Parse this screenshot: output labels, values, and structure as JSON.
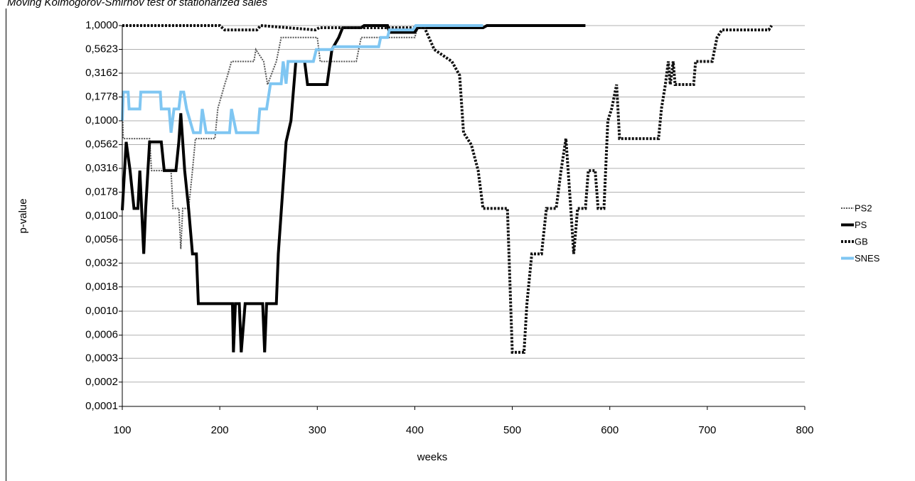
{
  "chart_data": {
    "type": "line",
    "title": "Moving Kolmogorov-Smirnov test of stationarized sales",
    "x_label": "weeks",
    "y_label": "p-value",
    "log_y": true,
    "grid": true,
    "legend": "right",
    "xlim": [
      100,
      800
    ],
    "xticks": [
      100,
      200,
      300,
      400,
      500,
      600,
      700,
      800
    ],
    "ylim": [
      0.0001,
      1
    ],
    "yticks": [
      {
        "value": 1,
        "label": "1,0000"
      },
      {
        "value": 0.5623,
        "label": "0,5623"
      },
      {
        "value": 0.3162,
        "label": "0,3162"
      },
      {
        "value": 0.1778,
        "label": "0,1778"
      },
      {
        "value": 0.1,
        "label": "0,1000"
      },
      {
        "value": 0.0562,
        "label": "0,0562"
      },
      {
        "value": 0.0316,
        "label": "0,0316"
      },
      {
        "value": 0.0178,
        "label": "0,0178"
      },
      {
        "value": 0.01,
        "label": "0,0100"
      },
      {
        "value": 0.0056,
        "label": "0,0056"
      },
      {
        "value": 0.0032,
        "label": "0,0032"
      },
      {
        "value": 0.0018,
        "label": "0,0018"
      },
      {
        "value": 0.001,
        "label": "0,0010"
      },
      {
        "value": 0.00056,
        "label": "0,0006"
      },
      {
        "value": 0.00032,
        "label": "0,0003"
      },
      {
        "value": 0.00018,
        "label": "0,0002"
      },
      {
        "value": 0.0001,
        "label": "0,0001"
      }
    ],
    "series": [
      {
        "name": "PS2",
        "color": "#555555",
        "dash": "dotted",
        "line_width": 2,
        "x": [
          100,
          101,
          103,
          128,
          130,
          150,
          152,
          158,
          160,
          162,
          168,
          172,
          175,
          195,
          198,
          205,
          208,
          212,
          235,
          237,
          245,
          249,
          258,
          263,
          300,
          303,
          340,
          345,
          400,
          403,
          410
        ],
        "values": [
          0.14,
          0.065,
          0.065,
          0.065,
          0.03,
          0.03,
          0.012,
          0.012,
          0.0045,
          0.012,
          0.012,
          0.03,
          0.065,
          0.065,
          0.135,
          0.24,
          0.3,
          0.42,
          0.42,
          0.56,
          0.42,
          0.24,
          0.42,
          0.75,
          0.75,
          0.42,
          0.42,
          0.75,
          0.75,
          0.95,
          0.95
        ]
      },
      {
        "name": "PS",
        "color": "#000000",
        "dash": "solid",
        "line_width": 4,
        "x": [
          100,
          104,
          108,
          112,
          116,
          118,
          122,
          124,
          128,
          140,
          143,
          155,
          158,
          160,
          164,
          168,
          172,
          176,
          178,
          213,
          214,
          216,
          220,
          222,
          226,
          244,
          246,
          248,
          258,
          260,
          268,
          273,
          278,
          287,
          290,
          310,
          315,
          322,
          326,
          345,
          348,
          372,
          374,
          400,
          403,
          470,
          474,
          575
        ],
        "values": [
          0.0115,
          0.06,
          0.03,
          0.012,
          0.012,
          0.03,
          0.004,
          0.012,
          0.06,
          0.06,
          0.03,
          0.03,
          0.06,
          0.12,
          0.03,
          0.012,
          0.004,
          0.004,
          0.0012,
          0.0012,
          0.00037,
          0.0012,
          0.0012,
          0.00037,
          0.0012,
          0.0012,
          0.00037,
          0.0012,
          0.0012,
          0.004,
          0.06,
          0.1,
          0.42,
          0.42,
          0.24,
          0.24,
          0.56,
          0.75,
          0.95,
          0.95,
          1,
          1,
          0.85,
          0.85,
          0.95,
          0.95,
          1,
          1
        ]
      },
      {
        "name": "GB",
        "color": "#111111",
        "dash": "dotted",
        "line_width": 4,
        "x": [
          100,
          200,
          205,
          238,
          242,
          298,
          302,
          410,
          420,
          438,
          446,
          450,
          458,
          465,
          470,
          495,
          500,
          512,
          515,
          520,
          530,
          535,
          545,
          550,
          555,
          560,
          563,
          567,
          575,
          578,
          585,
          588,
          594,
          598,
          602,
          607,
          610,
          650,
          653,
          657,
          660,
          662,
          665,
          667,
          686,
          688,
          705,
          710,
          715,
          763,
          766
        ],
        "values": [
          1,
          1,
          0.9,
          0.9,
          1,
          0.9,
          0.95,
          0.95,
          0.56,
          0.42,
          0.3,
          0.075,
          0.056,
          0.03,
          0.012,
          0.012,
          0.00037,
          0.00037,
          0.0012,
          0.004,
          0.004,
          0.012,
          0.012,
          0.03,
          0.065,
          0.012,
          0.004,
          0.012,
          0.012,
          0.03,
          0.03,
          0.012,
          0.012,
          0.1,
          0.135,
          0.24,
          0.065,
          0.065,
          0.135,
          0.24,
          0.42,
          0.24,
          0.42,
          0.24,
          0.24,
          0.42,
          0.42,
          0.75,
          0.9,
          0.9,
          1
        ]
      },
      {
        "name": "SNES",
        "color": "#7fc6f2",
        "dash": "solid",
        "line_width": 4,
        "x": [
          100,
          101,
          106,
          107,
          118,
          119,
          139,
          140,
          148,
          150,
          153,
          158,
          160,
          163,
          166,
          173,
          180,
          182,
          186,
          210,
          212,
          217,
          239,
          241,
          248,
          252,
          263,
          265,
          268,
          270,
          296,
          299,
          315,
          317,
          363,
          365,
          372,
          374,
          398,
          401,
          470
        ],
        "values": [
          0.1,
          0.2,
          0.2,
          0.133,
          0.133,
          0.2,
          0.2,
          0.133,
          0.133,
          0.075,
          0.133,
          0.133,
          0.2,
          0.2,
          0.133,
          0.075,
          0.075,
          0.133,
          0.075,
          0.075,
          0.133,
          0.075,
          0.075,
          0.133,
          0.133,
          0.245,
          0.245,
          0.42,
          0.245,
          0.42,
          0.42,
          0.56,
          0.56,
          0.6,
          0.6,
          0.75,
          0.75,
          0.9,
          0.9,
          1,
          1
        ]
      }
    ]
  }
}
